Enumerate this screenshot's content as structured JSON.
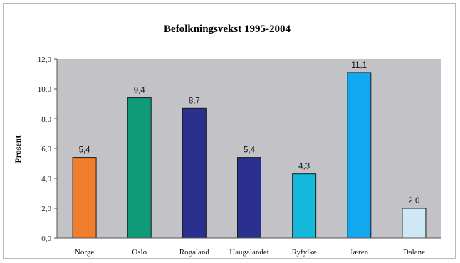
{
  "chart_data": {
    "type": "bar",
    "title": "Befolkningsvekst 1995-2004",
    "xlabel": "",
    "ylabel": "Prosent",
    "ylim": [
      0,
      12
    ],
    "yticks": [
      0,
      2,
      4,
      6,
      8,
      10,
      12
    ],
    "ytick_labels": [
      "0,0",
      "2,0",
      "4,0",
      "6,0",
      "8,0",
      "10,0",
      "12,0"
    ],
    "categories": [
      "Norge",
      "Oslo",
      "Rogaland",
      "Haugalandet",
      "Ryfylke",
      "Jæren",
      "Dalane"
    ],
    "values": [
      5.4,
      9.4,
      8.7,
      5.4,
      4.3,
      11.1,
      2.0
    ],
    "data_labels": [
      "5,4",
      "9,4",
      "8,7",
      "5,4",
      "4,3",
      "11,1",
      "2,0"
    ],
    "colors": [
      "#f07f2d",
      "#0f9a78",
      "#2b2f8e",
      "#2b2f8e",
      "#14b8da",
      "#12a8ef",
      "#cfe8f6"
    ],
    "plot_background": "#c3c3c7",
    "grid": false,
    "legend": "none"
  }
}
